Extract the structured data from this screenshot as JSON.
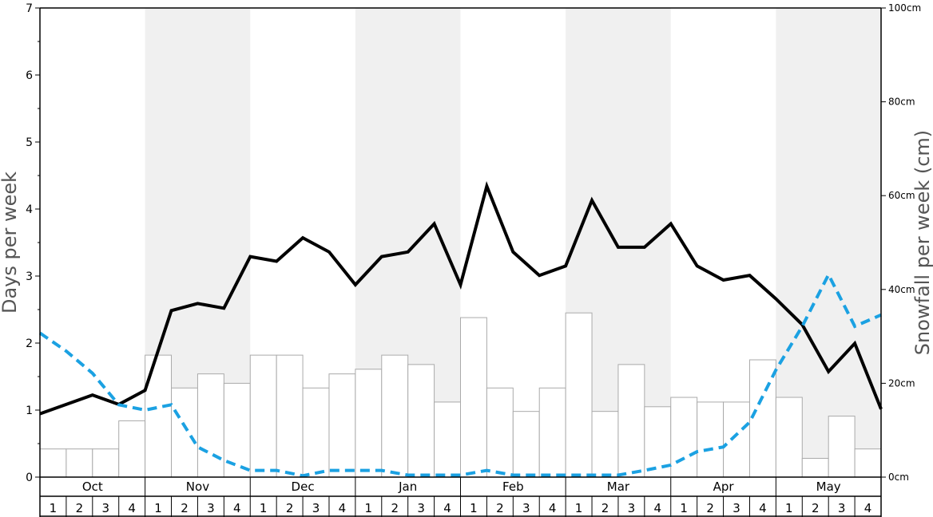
{
  "chart_data": {
    "type": "bar",
    "ylabel": "Days per week",
    "y2label": "Snowfall per week (cm)",
    "ylim": [
      0,
      7
    ],
    "y2lim": [
      0,
      100
    ],
    "y_ticks": [
      "0",
      "1",
      "2",
      "3",
      "4",
      "5",
      "6",
      "7"
    ],
    "y2_ticks": [
      "0cm",
      "20cm",
      "40cm",
      "60cm",
      "80cm",
      "100cm"
    ],
    "months": [
      "Oct",
      "Nov",
      "Dec",
      "Jan",
      "Feb",
      "Mar",
      "Apr",
      "May"
    ],
    "weeks": [
      "1",
      "2",
      "3",
      "4"
    ],
    "colors": {
      "bar_fill": "#ffffff",
      "bar_stroke": "#aaaaaa",
      "shade": "#f0f0f0",
      "snowfall_line": "#000000",
      "dashed_line": "#1ba1e2"
    },
    "series": [
      {
        "type": "bar",
        "axis": "left",
        "values": [
          0.42,
          0.42,
          0.42,
          0.84,
          1.82,
          1.33,
          1.54,
          1.4,
          1.82,
          1.82,
          1.33,
          1.54,
          1.61,
          1.82,
          1.68,
          1.12,
          2.38,
          1.33,
          0.98,
          1.33,
          2.45,
          0.98,
          1.68,
          1.05,
          1.19,
          1.12,
          1.12,
          1.75,
          1.19,
          0.28,
          0.91,
          0.42
        ]
      },
      {
        "type": "line",
        "axis": "right",
        "style": "solid",
        "values": [
          13.5,
          15.5,
          17.5,
          15.5,
          18.5,
          35.5,
          37.0,
          36.0,
          47.0,
          46.0,
          51.0,
          48.0,
          41.0,
          47.0,
          48.0,
          54.0,
          41.0,
          62.0,
          48.0,
          43.0,
          45.0,
          59.0,
          49.0,
          49.0,
          54.0,
          45.0,
          42.0,
          43.0,
          38.0,
          32.5,
          22.5,
          28.5,
          14.5
        ]
      },
      {
        "type": "line",
        "axis": "left",
        "style": "dashed",
        "values": [
          2.15,
          1.88,
          1.55,
          1.08,
          1.0,
          1.08,
          0.45,
          0.25,
          0.1,
          0.1,
          0.02,
          0.1,
          0.1,
          0.1,
          0.03,
          0.03,
          0.03,
          0.1,
          0.03,
          0.03,
          0.03,
          0.03,
          0.03,
          0.1,
          0.18,
          0.38,
          0.45,
          0.82,
          1.6,
          2.25,
          3.02,
          2.25,
          2.42
        ]
      }
    ]
  }
}
